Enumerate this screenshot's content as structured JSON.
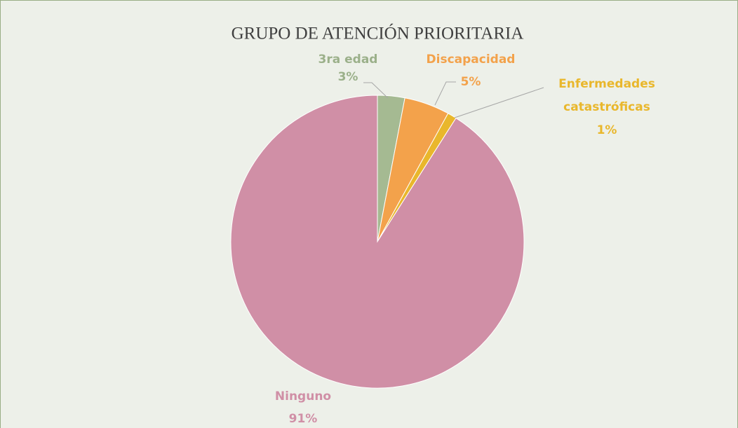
{
  "chart_data": {
    "type": "pie",
    "title": "GRUPO DE ATENCIÓN PRIORITARIA",
    "categories": [
      "3ra edad",
      "Discapacidad",
      "Enfermedades catastróficas",
      "Ninguno"
    ],
    "values": [
      3,
      5,
      1,
      91
    ],
    "value_labels": [
      "3%",
      "5%",
      "1%",
      "91%"
    ],
    "colors": [
      "#a5ba92",
      "#f3a24b",
      "#e9b72c",
      "#d08fa6"
    ]
  }
}
